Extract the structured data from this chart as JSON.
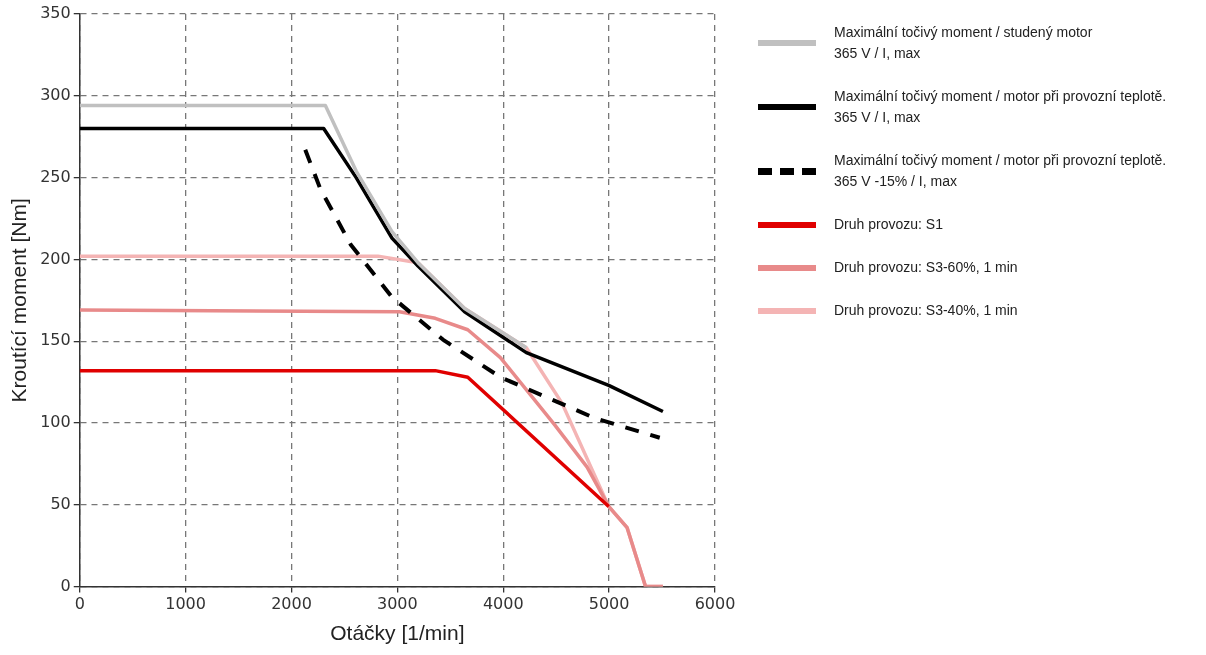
{
  "chart_data": {
    "type": "line",
    "xlabel": "Otáčky [1/min]",
    "ylabel": "Kroutící moment [Nm]",
    "xlim": [
      0,
      6000
    ],
    "xticks": [
      0,
      1000,
      2000,
      3000,
      4000,
      5000,
      6000
    ],
    "ylim": [
      0,
      350
    ],
    "yticks": [
      0,
      50,
      100,
      150,
      200,
      250,
      300,
      350
    ],
    "grid": true,
    "legend": "right",
    "marker": "none",
    "series": [
      {
        "name": "Maximální točivý moment / studený motor\n365 V / I, max",
        "color": "#c0c0c0",
        "x": [
          0,
          2320,
          2611,
          2949,
          3195,
          3635,
          4218
        ],
        "values": [
          294,
          294,
          254,
          217,
          198,
          170,
          146
        ]
      },
      {
        "name": "Maximální točivý moment / motor při provozní teplotě.\n365 V / I, max",
        "color": "#000000",
        "x": [
          0,
          2304,
          2611,
          2949,
          3195,
          3635,
          4218,
          4996,
          5508
        ],
        "values": [
          280,
          280,
          250,
          213,
          196,
          168,
          143,
          123,
          107
        ]
      },
      {
        "name": "Maximální točivý moment / motor při provozní teplotě.\n365 V -15% / I, max",
        "color": "#000000",
        "line_style": "dashed",
        "x": [
          2130,
          2273,
          2560,
          2949,
          3430,
          3973,
          4863,
          5478
        ],
        "values": [
          267,
          243,
          209,
          177,
          151,
          128,
          103,
          91
        ]
      },
      {
        "name": "Druh provozu: S1",
        "color": "#e00000",
        "x": [
          0,
          3358,
          3665,
          4996
        ],
        "values": [
          132,
          132,
          128,
          49
        ]
      },
      {
        "name": "Druh provozu: S3-60%, 1 min",
        "color": "#e88a8a",
        "x": [
          0,
          3020,
          3358,
          3665,
          3973,
          4484,
          4792,
          4996,
          5170,
          5344,
          5508
        ],
        "values": [
          169,
          168,
          164,
          157,
          140,
          99,
          73,
          49,
          36,
          0,
          0
        ]
      },
      {
        "name": "Druh provozu: S3-40%, 1 min",
        "color": "#f4b4b4",
        "x": [
          0,
          2816,
          3195,
          3635,
          4218,
          4556,
          4996,
          5170,
          5344,
          5508
        ],
        "values": [
          202,
          202,
          198,
          170,
          146,
          112,
          49,
          36,
          0,
          0
        ]
      }
    ]
  }
}
